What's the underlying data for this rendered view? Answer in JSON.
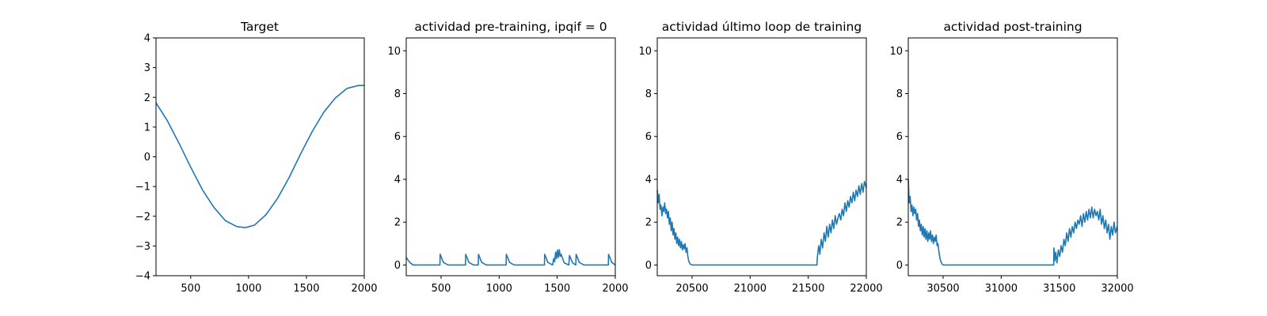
{
  "figure": {
    "background": "#ffffff",
    "line_color": "#1f77b4"
  },
  "chart_data": [
    {
      "type": "line",
      "title": "Target",
      "xlim": [
        200,
        2000
      ],
      "ylim": [
        -4,
        4
      ],
      "xticks": [
        "500",
        "1000",
        "1500",
        "2000"
      ],
      "yticks": [
        "4",
        "3",
        "2",
        "1",
        "0",
        "−1",
        "−2",
        "−3",
        "−4"
      ],
      "series": [
        {
          "x": [
            200,
            300,
            400,
            500,
            600,
            700,
            800,
            900,
            975,
            1050,
            1150,
            1250,
            1350,
            1450,
            1550,
            1650,
            1750,
            1850,
            1950,
            2000
          ],
          "y": [
            1.82,
            1.2,
            0.45,
            -0.35,
            -1.1,
            -1.7,
            -2.15,
            -2.35,
            -2.38,
            -2.3,
            -1.95,
            -1.4,
            -0.7,
            0.1,
            0.85,
            1.5,
            1.98,
            2.3,
            2.4,
            2.4
          ]
        }
      ]
    },
    {
      "type": "line",
      "title": "actividad pre-training, ipqif = 0",
      "xlim": [
        200,
        2000
      ],
      "ylim": [
        -0.5,
        10.6
      ],
      "xticks": [
        "500",
        "1000",
        "1500",
        "2000"
      ],
      "yticks": [
        "10",
        "8",
        "6",
        "4",
        "2",
        "0"
      ],
      "series": [
        {
          "x": [
            200,
            230,
            260,
            490,
            492,
            520,
            560,
            710,
            712,
            740,
            780,
            820,
            822,
            850,
            890,
            1060,
            1062,
            1090,
            1130,
            1390,
            1392,
            1420,
            1460,
            1470,
            1478,
            1486,
            1494,
            1502,
            1510,
            1518,
            1526,
            1534,
            1560,
            1600,
            1605,
            1632,
            1660,
            1663,
            1690,
            1730,
            1940,
            1942,
            1970,
            2000
          ],
          "y": [
            0.35,
            0.12,
            0.0,
            0.0,
            0.5,
            0.12,
            0.0,
            0.0,
            0.5,
            0.12,
            0.0,
            0.0,
            0.5,
            0.12,
            0.0,
            0.0,
            0.5,
            0.12,
            0.0,
            0.0,
            0.5,
            0.12,
            0.0,
            0.3,
            0.15,
            0.6,
            0.3,
            0.7,
            0.35,
            0.72,
            0.4,
            0.5,
            0.1,
            0.0,
            0.45,
            0.1,
            0.0,
            0.5,
            0.12,
            0.0,
            0.0,
            0.5,
            0.12,
            0.0
          ]
        }
      ]
    },
    {
      "type": "line",
      "title": "actividad último loop de training",
      "xlim": [
        20200,
        22000
      ],
      "ylim": [
        -0.5,
        10.6
      ],
      "xticks": [
        "20500",
        "21000",
        "21500",
        "22000"
      ],
      "yticks": [
        "10",
        "8",
        "6",
        "4",
        "2",
        "0"
      ],
      "series": [
        {
          "x": [
            20200,
            20208,
            20216,
            20224,
            20232,
            20240,
            20248,
            20256,
            20264,
            20272,
            20280,
            20288,
            20296,
            20304,
            20312,
            20320,
            20328,
            20336,
            20344,
            20352,
            20360,
            20368,
            20376,
            20384,
            20392,
            20400,
            20408,
            20416,
            20424,
            20432,
            20440,
            20448,
            20456,
            20462,
            20468,
            20476,
            20484,
            20500,
            20540,
            21000,
            21500,
            21575,
            21577,
            21590,
            21600,
            21612,
            21624,
            21636,
            21648,
            21660,
            21672,
            21684,
            21696,
            21708,
            21720,
            21732,
            21744,
            21756,
            21768,
            21780,
            21792,
            21804,
            21816,
            21828,
            21840,
            21852,
            21864,
            21876,
            21888,
            21900,
            21912,
            21924,
            21936,
            21948,
            21960,
            21972,
            21984,
            22000
          ],
          "y": [
            3.5,
            2.9,
            3.3,
            2.6,
            2.8,
            2.3,
            2.7,
            2.5,
            2.9,
            2.4,
            2.6,
            2.2,
            2.5,
            1.9,
            2.2,
            1.6,
            2.0,
            1.4,
            1.7,
            1.2,
            1.5,
            1.0,
            1.3,
            0.9,
            1.2,
            0.8,
            1.1,
            0.7,
            0.95,
            0.75,
            1.0,
            0.6,
            0.8,
            0.45,
            0.25,
            0.12,
            0.04,
            0.0,
            0.0,
            0.0,
            0.0,
            0.0,
            0.3,
            0.9,
            0.5,
            1.2,
            0.8,
            1.5,
            1.1,
            1.8,
            1.3,
            1.9,
            1.5,
            2.1,
            1.7,
            2.3,
            1.9,
            2.2,
            2.4,
            2.1,
            2.6,
            2.3,
            2.9,
            2.5,
            3.0,
            2.7,
            3.2,
            2.9,
            3.4,
            3.0,
            3.5,
            3.2,
            3.7,
            3.3,
            3.8,
            3.4,
            3.9,
            3.6
          ]
        }
      ]
    },
    {
      "type": "line",
      "title": "actividad post-training",
      "xlim": [
        30200,
        32000
      ],
      "ylim": [
        -0.5,
        10.6
      ],
      "xticks": [
        "30500",
        "31000",
        "31500",
        "32000"
      ],
      "yticks": [
        "10",
        "8",
        "6",
        "4",
        "2",
        "0"
      ],
      "series": [
        {
          "x": [
            30200,
            30208,
            30216,
            30224,
            30232,
            30240,
            30248,
            30256,
            30264,
            30272,
            30280,
            30288,
            30296,
            30304,
            30312,
            30320,
            30328,
            30336,
            30344,
            30352,
            30360,
            30368,
            30376,
            30384,
            30392,
            30400,
            30408,
            30416,
            30424,
            30432,
            30440,
            30448,
            30456,
            30462,
            30470,
            30478,
            30490,
            30500,
            30540,
            31000,
            31440,
            31452,
            31454,
            31462,
            31470,
            31480,
            31492,
            31504,
            31516,
            31528,
            31540,
            31552,
            31564,
            31576,
            31588,
            31600,
            31612,
            31624,
            31636,
            31648,
            31660,
            31672,
            31684,
            31696,
            31708,
            31720,
            31732,
            31744,
            31756,
            31768,
            31780,
            31792,
            31804,
            31816,
            31828,
            31840,
            31852,
            31864,
            31876,
            31888,
            31900,
            31912,
            31924,
            31936,
            31948,
            31960,
            31972,
            31984,
            32000
          ],
          "y": [
            4.0,
            2.9,
            3.2,
            2.5,
            2.8,
            2.3,
            2.7,
            2.4,
            2.6,
            2.1,
            2.4,
            1.8,
            2.1,
            1.6,
            1.9,
            1.4,
            1.8,
            1.3,
            1.7,
            1.2,
            1.6,
            1.1,
            1.5,
            1.2,
            1.6,
            1.1,
            1.4,
            1.0,
            1.3,
            1.1,
            1.4,
            0.9,
            1.0,
            0.7,
            0.4,
            0.2,
            0.05,
            0.0,
            0.0,
            0.0,
            0.0,
            0.0,
            0.8,
            0.2,
            0.6,
            0.1,
            0.7,
            0.4,
            0.9,
            0.6,
            1.2,
            0.9,
            1.5,
            1.1,
            1.7,
            1.3,
            1.8,
            1.5,
            2.0,
            1.7,
            2.1,
            1.9,
            2.3,
            1.8,
            2.4,
            2.0,
            2.5,
            2.1,
            2.6,
            2.2,
            2.7,
            2.2,
            2.6,
            2.3,
            2.5,
            2.1,
            2.6,
            1.9,
            2.3,
            1.7,
            2.1,
            1.5,
            1.9,
            1.2,
            1.8,
            1.4,
            2.0,
            1.5,
            1.8
          ]
        }
      ]
    }
  ]
}
